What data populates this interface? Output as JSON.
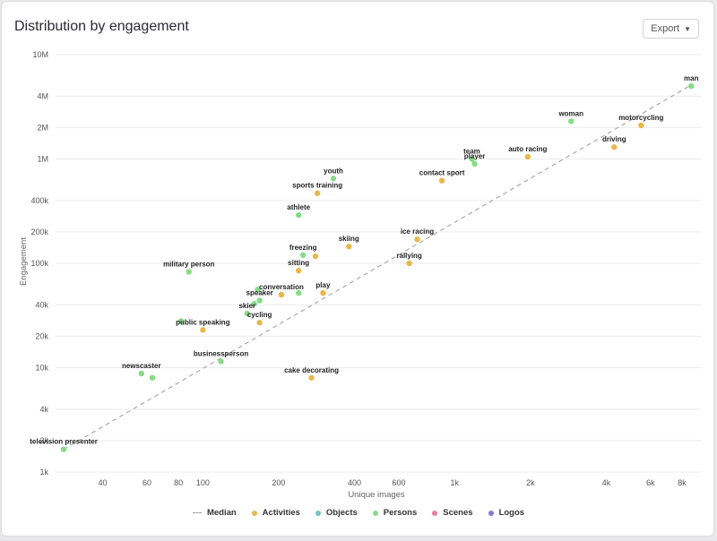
{
  "header": {
    "title": "Distribution by engagement",
    "export_label": "Export"
  },
  "colors": {
    "Activities": "#e8b84b",
    "Objects": "#6cc6c6",
    "Persons": "#86dc86",
    "Scenes": "#e77f9c",
    "Logos": "#8a78d0",
    "median": "#aaaaaa",
    "grid": "#ececef"
  },
  "legend": [
    {
      "name": "Median",
      "kind": "dash"
    },
    {
      "name": "Activities",
      "kind": "dot"
    },
    {
      "name": "Objects",
      "kind": "dot"
    },
    {
      "name": "Persons",
      "kind": "dot"
    },
    {
      "name": "Scenes",
      "kind": "dot"
    },
    {
      "name": "Logos",
      "kind": "dot"
    }
  ],
  "chart_data": {
    "type": "scatter",
    "xlabel": "Unique images",
    "ylabel": "Engagement",
    "xscale": "log",
    "yscale": "log",
    "xlim": [
      26,
      9500
    ],
    "ylim": [
      1000,
      10000000
    ],
    "grid": true,
    "legend_position": "bottom",
    "x_ticks": [
      {
        "value": 40,
        "label": "40"
      },
      {
        "value": 60,
        "label": "60"
      },
      {
        "value": 80,
        "label": "80"
      },
      {
        "value": 100,
        "label": "100"
      },
      {
        "value": 200,
        "label": "200"
      },
      {
        "value": 400,
        "label": "400"
      },
      {
        "value": 600,
        "label": "600"
      },
      {
        "value": 1000,
        "label": "1k"
      },
      {
        "value": 2000,
        "label": "2k"
      },
      {
        "value": 4000,
        "label": "4k"
      },
      {
        "value": 6000,
        "label": "6k"
      },
      {
        "value": 8000,
        "label": "8k"
      }
    ],
    "y_ticks": [
      {
        "value": 1000,
        "label": "1k"
      },
      {
        "value": 2000,
        "label": "2k"
      },
      {
        "value": 4000,
        "label": "4k"
      },
      {
        "value": 10000,
        "label": "10k"
      },
      {
        "value": 20000,
        "label": "20k"
      },
      {
        "value": 40000,
        "label": "40k"
      },
      {
        "value": 100000,
        "label": "100k"
      },
      {
        "value": 200000,
        "label": "200k"
      },
      {
        "value": 400000,
        "label": "400k"
      },
      {
        "value": 1000000,
        "label": "1M"
      },
      {
        "value": 2000000,
        "label": "2M"
      },
      {
        "value": 4000000,
        "label": "4M"
      },
      {
        "value": 10000000,
        "label": "10M"
      }
    ],
    "median_line": [
      [
        28,
        1650
      ],
      [
        8800,
        5200000
      ]
    ],
    "points": [
      {
        "label": "man",
        "x": 8700,
        "y": 5000000,
        "category": "Persons"
      },
      {
        "label": "woman",
        "x": 2900,
        "y": 2300000,
        "category": "Persons"
      },
      {
        "label": "motorcycling",
        "x": 5500,
        "y": 2100000,
        "category": "Activities"
      },
      {
        "label": "driving",
        "x": 4300,
        "y": 1300000,
        "category": "Activities"
      },
      {
        "label": "auto racing",
        "x": 1950,
        "y": 1050000,
        "category": "Activities"
      },
      {
        "label": "team",
        "x": 1170,
        "y": 1000000,
        "category": "Persons"
      },
      {
        "label": "player",
        "x": 1200,
        "y": 900000,
        "category": "Persons"
      },
      {
        "label": "contact sport",
        "x": 890,
        "y": 620000,
        "category": "Activities"
      },
      {
        "label": "youth",
        "x": 330,
        "y": 650000,
        "category": "Persons"
      },
      {
        "label": "sports training",
        "x": 285,
        "y": 470000,
        "category": "Activities"
      },
      {
        "label": "athlete",
        "x": 240,
        "y": 290000,
        "category": "Persons"
      },
      {
        "label": "ice racing",
        "x": 710,
        "y": 170000,
        "category": "Activities"
      },
      {
        "label": "skiing",
        "x": 380,
        "y": 145000,
        "category": "Activities"
      },
      {
        "label": "freezing",
        "x": 250,
        "y": 120000,
        "category": "Persons"
      },
      {
        "label": "freezing",
        "x": 280,
        "y": 117000,
        "category": "Activities"
      },
      {
        "label": "rallying",
        "x": 660,
        "y": 100000,
        "category": "Activities"
      },
      {
        "label": "sitting",
        "x": 240,
        "y": 85000,
        "category": "Activities"
      },
      {
        "label": "military person",
        "x": 88,
        "y": 83000,
        "category": "Persons"
      },
      {
        "label": "play",
        "x": 300,
        "y": 52000,
        "category": "Activities"
      },
      {
        "label": "conversation",
        "x": 240,
        "y": 52000,
        "category": "Persons"
      },
      {
        "label": "conversation",
        "x": 205,
        "y": 50000,
        "category": "Activities"
      },
      {
        "label": "conversation",
        "x": 165,
        "y": 56000,
        "category": "Persons"
      },
      {
        "label": "speaker",
        "x": 168,
        "y": 44000,
        "category": "Persons"
      },
      {
        "label": "speaker",
        "x": 160,
        "y": 41000,
        "category": "Persons"
      },
      {
        "label": "skier",
        "x": 150,
        "y": 33000,
        "category": "Persons"
      },
      {
        "label": "cycling",
        "x": 168,
        "y": 27000,
        "category": "Activities"
      },
      {
        "label": "public speaking",
        "x": 82,
        "y": 28000,
        "category": "Persons"
      },
      {
        "label": "public speaking",
        "x": 100,
        "y": 23000,
        "category": "Activities"
      },
      {
        "label": "businessperson",
        "x": 118,
        "y": 11500,
        "category": "Persons"
      },
      {
        "label": "newscaster",
        "x": 57,
        "y": 8800,
        "category": "Persons"
      },
      {
        "label": "newscaster",
        "x": 63,
        "y": 8000,
        "category": "Persons"
      },
      {
        "label": "cake decorating",
        "x": 270,
        "y": 8000,
        "category": "Activities"
      },
      {
        "label": "television presenter",
        "x": 28,
        "y": 1650,
        "category": "Persons"
      }
    ],
    "point_labels": [
      {
        "text": "man",
        "for": 0
      },
      {
        "text": "woman",
        "for": 1
      },
      {
        "text": "motorcycling",
        "for": 2
      },
      {
        "text": "driving",
        "for": 3
      },
      {
        "text": "auto racing",
        "for": 4
      },
      {
        "text": "team",
        "for": 5
      },
      {
        "text": "player",
        "for": 6
      },
      {
        "text": "contact sport",
        "for": 7
      },
      {
        "text": "youth",
        "for": 8
      },
      {
        "text": "sports training",
        "for": 9
      },
      {
        "text": "athlete",
        "for": 10
      },
      {
        "text": "ice racing",
        "for": 11
      },
      {
        "text": "skiing",
        "for": 12
      },
      {
        "text": "freezing",
        "for": 13
      },
      {
        "text": "rallying",
        "for": 15
      },
      {
        "text": "sitting",
        "for": 16
      },
      {
        "text": "military person",
        "for": 17
      },
      {
        "text": "play",
        "for": 18
      },
      {
        "text": "conversation",
        "for": 20
      },
      {
        "text": "speaker",
        "for": 22
      },
      {
        "text": "skier",
        "for": 24
      },
      {
        "text": "cycling",
        "for": 25
      },
      {
        "text": "public speaking",
        "for": 27
      },
      {
        "text": "businessperson",
        "for": 28
      },
      {
        "text": "newscaster",
        "for": 29
      },
      {
        "text": "cake decorating",
        "for": 31
      },
      {
        "text": "television presenter",
        "for": 32
      }
    ]
  }
}
